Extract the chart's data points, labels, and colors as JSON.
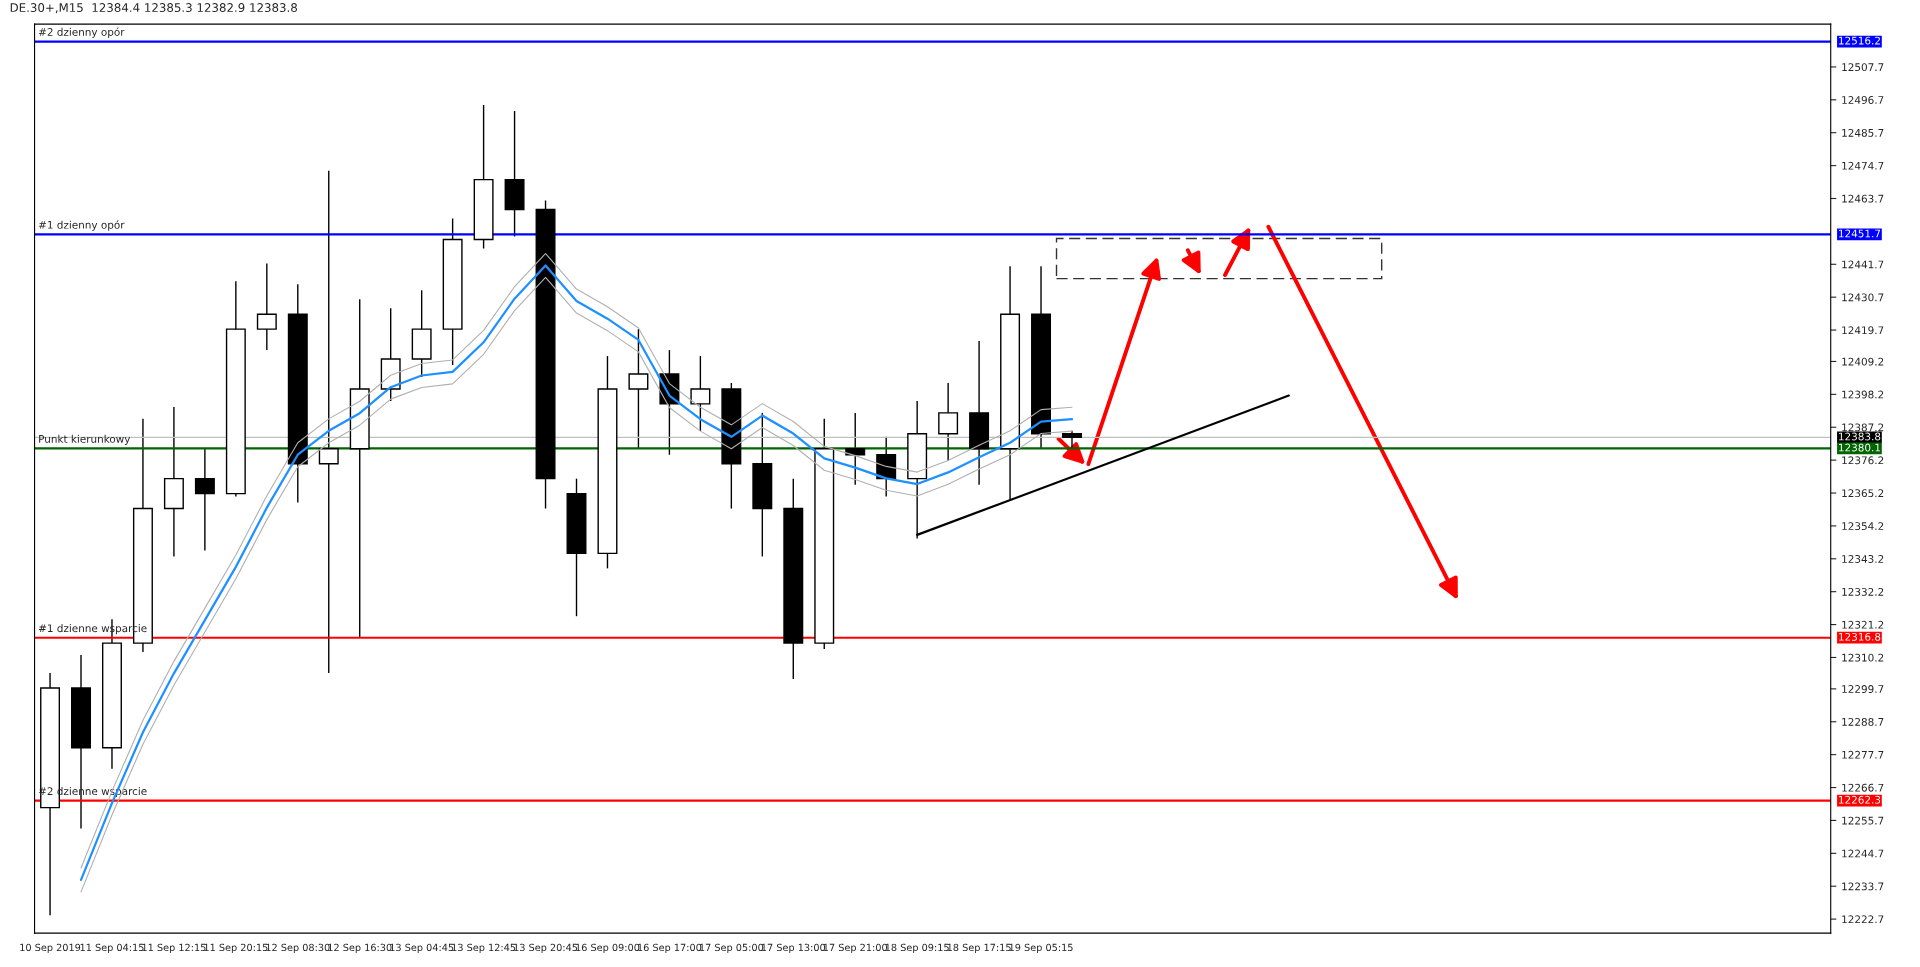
{
  "chart_data": {
    "type": "candlestick",
    "title": "DE.30+,M15  12384.4 12385.3 12382.9 12383.8",
    "categories": [
      "10 Sep 2019",
      null,
      "11 Sep 04:15",
      null,
      "11 Sep 12:15",
      null,
      "11 Sep 20:15",
      null,
      "12 Sep 08:30",
      null,
      "12 Sep 16:30",
      null,
      "13 Sep 04:45",
      null,
      "13 Sep 12:45",
      null,
      "13 Sep 20:45",
      null,
      "16 Sep 09:00",
      null,
      "16 Sep 17:00",
      null,
      "17 Sep 05:00",
      null,
      "17 Sep 13:00",
      null,
      "17 Sep 21:00",
      null,
      "18 Sep 09:15",
      null,
      "18 Sep 17:15",
      null,
      "19 Sep 05:15",
      null,
      null,
      null,
      null,
      null,
      null,
      null,
      null,
      null,
      null,
      null,
      null,
      null,
      null,
      null,
      null,
      null,
      null,
      null,
      null,
      null,
      null,
      null,
      null,
      null
    ],
    "ohlc": [
      [
        12260,
        12305,
        12224,
        12300
      ],
      [
        12300,
        12311,
        12253,
        12280
      ],
      [
        12280,
        12323,
        12273,
        12315
      ],
      [
        12315,
        12390,
        12312,
        12360
      ],
      [
        12360,
        12394,
        12344,
        12370
      ],
      [
        12370,
        12380,
        12346,
        12365
      ],
      [
        12365,
        12436,
        12364,
        12420
      ],
      [
        12420,
        12442,
        12413,
        12425
      ],
      [
        12425,
        12435,
        12362,
        12375
      ],
      [
        12375,
        12473,
        12305,
        12380
      ],
      [
        12380,
        12430,
        12317,
        12400
      ],
      [
        12400,
        12427,
        12396,
        12410
      ],
      [
        12410,
        12433,
        12404,
        12420
      ],
      [
        12420,
        12457,
        12408,
        12450
      ],
      [
        12450,
        12495,
        12447,
        12470
      ],
      [
        12470,
        12493,
        12451,
        12460
      ],
      [
        12460,
        12463,
        12360,
        12370
      ],
      [
        12365,
        12370,
        12324,
        12345
      ],
      [
        12345,
        12411,
        12340,
        12400
      ],
      [
        12400,
        12420,
        12380,
        12405
      ],
      [
        12405,
        12413,
        12378,
        12395
      ],
      [
        12395,
        12411,
        12386,
        12400
      ],
      [
        12400,
        12402,
        12360,
        12375
      ],
      [
        12375,
        12392,
        12344,
        12360
      ],
      [
        12360,
        12370,
        12303,
        12315
      ],
      [
        12315,
        12390,
        12313,
        12380
      ],
      [
        12380,
        12392,
        12368,
        12378
      ],
      [
        12378,
        12384,
        12364,
        12370
      ],
      [
        12370,
        12396,
        12350,
        12385
      ],
      [
        12385,
        12402,
        12376,
        12392
      ],
      [
        12392,
        12416,
        12368,
        12380
      ],
      [
        12380,
        12441,
        12363,
        12425
      ],
      [
        12425,
        12441,
        12380,
        12385
      ],
      [
        12385,
        12386,
        12380,
        12383.8
      ],
      null,
      null,
      null,
      null,
      null,
      null,
      null,
      null,
      null,
      null,
      null,
      null,
      null,
      null,
      null,
      null,
      null,
      null,
      null,
      null,
      null,
      null,
      null,
      null
    ],
    "series": [
      {
        "type": "line",
        "color": "#1e90ff",
        "values": [
          null,
          12235.8,
          12261.5,
          12285.2,
          12304.9,
          12322.7,
          12340.5,
          12360.3,
          12378.0,
          12386.0,
          12391.9,
          12400.6,
          12404.5,
          12405.7,
          12415.6,
          12430.2,
          12441.3,
          12429.4,
          12423.5,
          12416.4,
          12397.8,
          12389.9,
          12384.0,
          12391.1,
          12385.1,
          12376.8,
          12373.7,
          12370.1,
          12368.2,
          12372.1,
          12377.2,
          12382.0,
          12389.1,
          12389.9,
          null,
          null,
          null,
          null,
          null,
          null,
          null,
          null,
          null,
          null,
          null,
          null,
          null,
          null,
          null,
          null,
          null,
          null,
          null,
          null,
          null,
          null,
          null,
          null
        ],
        "name": null
      },
      {
        "type": "line",
        "color": "#b0b0b0",
        "values": [
          null,
          12231.8,
          12257.5,
          12281.2,
          12300.9,
          12318.7,
          12336.5,
          12356.3,
          12374.0,
          12382.0,
          12387.9,
          12396.6,
          12400.5,
          12401.7,
          12411.6,
          12426.2,
          12437.3,
          12425.4,
          12419.5,
          12412.4,
          12393.8,
          12385.9,
          12380.0,
          12387.1,
          12381.1,
          12372.8,
          12369.7,
          12366.1,
          12364.2,
          12368.1,
          12373.2,
          12378.0,
          12385.1,
          12385.9,
          null,
          null,
          null,
          null,
          null,
          null,
          null,
          null,
          null,
          null,
          null,
          null,
          null,
          null,
          null,
          null,
          null,
          null,
          null,
          null,
          null,
          null,
          null,
          null
        ],
        "name": null
      },
      {
        "type": "line",
        "color": "#b0b0b0",
        "values": [
          null,
          12239.8,
          12265.5,
          12289.2,
          12308.9,
          12326.7,
          12344.5,
          12364.3,
          12382.0,
          12390.0,
          12395.9,
          12404.6,
          12408.5,
          12409.7,
          12419.6,
          12434.2,
          12445.3,
          12433.4,
          12427.5,
          12420.4,
          12401.8,
          12393.9,
          12388.0,
          12395.1,
          12389.1,
          12380.8,
          12377.7,
          12374.1,
          12372.2,
          12376.1,
          12381.2,
          12386.0,
          12393.1,
          12393.9,
          null,
          null,
          null,
          null,
          null,
          null,
          null,
          null,
          null,
          null,
          null,
          null,
          null,
          null,
          null,
          null,
          null,
          null,
          null,
          null,
          null,
          null,
          null,
          null
        ],
        "name": null
      },
      {
        "type": "line",
        "color": "#000000",
        "values": [
          null,
          null,
          null,
          null,
          null,
          null,
          null,
          null,
          null,
          null,
          null,
          null,
          null,
          null,
          null,
          null,
          null,
          null,
          null,
          null,
          null,
          null,
          null,
          null,
          null,
          null,
          null,
          null,
          12351.2,
          null,
          null,
          null,
          null,
          null,
          null,
          null,
          null,
          null,
          null,
          null,
          12397.8,
          null,
          null,
          null,
          null,
          null,
          null,
          null,
          null,
          null,
          null,
          null,
          null,
          null,
          null,
          null,
          null,
          null
        ]
      }
    ],
    "ref_lines": [
      {
        "axis": "y",
        "value": 12516.2,
        "label": "#2 dzienny opór",
        "color": "#0000ff"
      },
      {
        "axis": "y",
        "value": 12451.7,
        "label": "#1 dzienny opór",
        "color": "#0000ff"
      },
      {
        "axis": "y",
        "value": 12383.8,
        "label": null,
        "color": "#c0c0c0"
      },
      {
        "axis": "y",
        "value": 12380.1,
        "label": "Punkt kierunkowy",
        "color": "#006400"
      },
      {
        "axis": "y",
        "value": 12316.8,
        "label": "#1 dzienne wsparcie",
        "color": "#ff0000"
      },
      {
        "axis": "y",
        "value": 12262.3,
        "label": "#2 dzienne wsparcie",
        "color": "#ff0000"
      }
    ],
    "annotations": [
      "12516.2",
      "12451.7",
      "12383.8",
      "12380.1",
      "12316.8",
      "12262.3"
    ],
    "ylim": [
      12218,
      12522
    ],
    "yticks": [
      12507.7,
      12496.7,
      12485.7,
      12474.7,
      12463.7,
      12441.7,
      12430.7,
      12419.7,
      12409.2,
      12398.2,
      12387.2,
      12376.2,
      12365.2,
      12354.2,
      12343.2,
      12332.2,
      12321.2,
      12310.2,
      12299.7,
      12288.7,
      12277.7,
      12266.7,
      12255.7,
      12244.7,
      12233.7,
      12222.7
    ],
    "grid": false
  }
}
